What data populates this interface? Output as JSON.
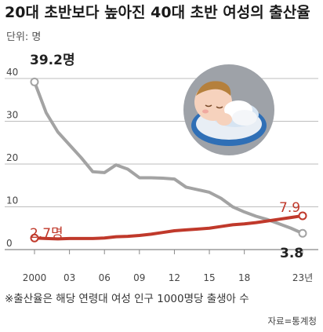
{
  "title": "20대 초반보다 높아진 40대 초반 여성의 출산율",
  "unit_label": "단위: 명",
  "footnote": "※출산율은 해당 연령대 여성 인구 1000명당 출생아 수",
  "source": "자료=통계청",
  "colors": {
    "women_40s": "#a3a3a3",
    "women_20s": "#c0392b",
    "bg_circle": "#9fa3aa"
  },
  "illustration": "sleeping-baby-icon",
  "chart_data": {
    "type": "line",
    "x": [
      2000,
      2001,
      2002,
      2003,
      2004,
      2005,
      2006,
      2007,
      2008,
      2009,
      2010,
      2011,
      2012,
      2013,
      2014,
      2015,
      2016,
      2017,
      2018,
      2019,
      2020,
      2021,
      2022,
      2023
    ],
    "x_tick_labels": [
      "2000",
      "03",
      "06",
      "09",
      "12",
      "15",
      "18",
      "23년"
    ],
    "x_tick_values": [
      2000,
      2003,
      2006,
      2009,
      2012,
      2015,
      2018,
      2023
    ],
    "y_ticks": [
      0,
      10,
      20,
      30,
      40
    ],
    "ylim": [
      0,
      40
    ],
    "grid": true,
    "series": [
      {
        "key": "women_40s",
        "values": [
          39.2,
          32.0,
          27.5,
          24.5,
          21.5,
          18.2,
          18.0,
          19.8,
          18.8,
          16.8,
          16.8,
          16.7,
          16.5,
          14.6,
          14.0,
          13.4,
          12.0,
          10.0,
          8.8,
          7.8,
          7.0,
          6.0,
          5.0,
          3.8
        ],
        "start_label": "39.2명",
        "end_label": "3.8"
      },
      {
        "key": "women_20s",
        "values": [
          2.7,
          2.6,
          2.5,
          2.6,
          2.6,
          2.6,
          2.7,
          3.0,
          3.1,
          3.3,
          3.6,
          4.0,
          4.4,
          4.6,
          4.8,
          5.0,
          5.4,
          5.8,
          6.0,
          6.3,
          6.7,
          7.1,
          7.5,
          7.9
        ],
        "start_label": "2.7명",
        "end_label": "7.9"
      }
    ]
  }
}
